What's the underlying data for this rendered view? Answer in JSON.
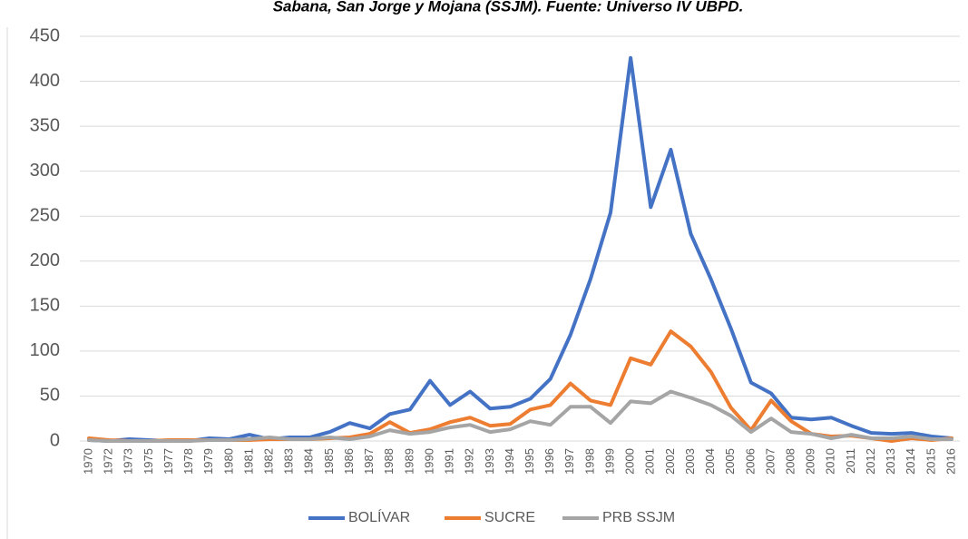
{
  "chart_data": {
    "type": "line",
    "title": "Sabana, San Jorge y Mojana (SSJM). Fuente: Universo IV UBPD.",
    "categories": [
      "1970",
      "1972",
      "1973",
      "1975",
      "1977",
      "1978",
      "1979",
      "1980",
      "1981",
      "1982",
      "1983",
      "1984",
      "1985",
      "1986",
      "1987",
      "1988",
      "1989",
      "1990",
      "1991",
      "1992",
      "1993",
      "1994",
      "1995",
      "1996",
      "1997",
      "1998",
      "1999",
      "2000",
      "2001",
      "2002",
      "2003",
      "2004",
      "2005",
      "2006",
      "2007",
      "2008",
      "2009",
      "2010",
      "2011",
      "2012",
      "2013",
      "2014",
      "2015",
      "2016"
    ],
    "series": [
      {
        "name": "BOLÍVAR",
        "color": "#4472c4",
        "values": [
          1,
          0,
          2,
          1,
          0,
          0,
          3,
          2,
          7,
          2,
          4,
          4,
          10,
          20,
          14,
          30,
          35,
          67,
          40,
          55,
          36,
          38,
          47,
          69,
          118,
          180,
          254,
          426,
          260,
          324,
          230,
          180,
          125,
          65,
          53,
          26,
          24,
          26,
          17,
          9,
          8,
          9,
          5,
          3
        ]
      },
      {
        "name": "SUCRE",
        "color": "#ed7d31",
        "values": [
          3,
          1,
          0,
          0,
          1,
          1,
          1,
          1,
          1,
          2,
          2,
          2,
          3,
          4,
          8,
          21,
          9,
          13,
          21,
          26,
          17,
          19,
          35,
          40,
          64,
          45,
          40,
          92,
          85,
          122,
          105,
          77,
          37,
          12,
          45,
          22,
          8,
          5,
          6,
          3,
          0,
          3,
          1,
          3
        ]
      },
      {
        "name": "PRB SSJM",
        "color": "#a5a5a5",
        "values": [
          1,
          0,
          0,
          0,
          0,
          0,
          1,
          1,
          2,
          4,
          2,
          2,
          4,
          2,
          5,
          12,
          8,
          10,
          15,
          18,
          10,
          13,
          22,
          18,
          38,
          38,
          20,
          44,
          42,
          55,
          48,
          40,
          28,
          10,
          25,
          10,
          8,
          3,
          7,
          3,
          3,
          5,
          2,
          2
        ]
      }
    ],
    "ylim": [
      0,
      450
    ],
    "yticks": [
      0,
      50,
      100,
      150,
      200,
      250,
      300,
      350,
      400,
      450
    ],
    "grid": true,
    "legend": "bottom"
  }
}
